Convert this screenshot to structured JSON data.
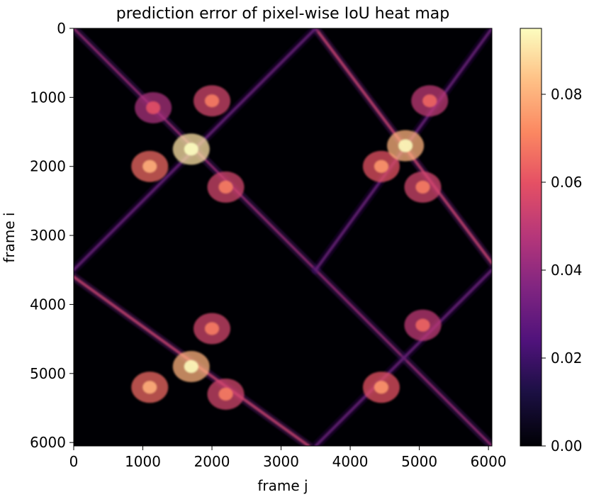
{
  "chart_data": {
    "type": "heatmap",
    "title": "prediction error of pixel-wise IoU heat map",
    "xlabel": "frame j",
    "ylabel": "frame i",
    "xlim": [
      0,
      6050
    ],
    "ylim": [
      6050,
      0
    ],
    "xticks": [
      0,
      1000,
      2000,
      3000,
      4000,
      5000,
      6000
    ],
    "yticks": [
      0,
      1000,
      2000,
      3000,
      4000,
      5000,
      6000
    ],
    "xtick_labels": [
      "0",
      "1000",
      "2000",
      "3000",
      "4000",
      "5000",
      "6000"
    ],
    "ytick_labels": [
      "0",
      "1000",
      "2000",
      "3000",
      "4000",
      "5000",
      "6000"
    ],
    "colormap": "magma",
    "background_color": "#000004",
    "colorbar": {
      "range": [
        0.0,
        0.095
      ],
      "ticks": [
        0.0,
        0.02,
        0.04,
        0.06,
        0.08
      ],
      "tick_labels": [
        "0.00",
        "0.02",
        "0.04",
        "0.06",
        "0.08"
      ]
    },
    "features": [
      {
        "kind": "diagonal",
        "from": [
          0,
          0
        ],
        "to": [
          3500,
          3500
        ],
        "value": 0.05
      },
      {
        "kind": "diagonal",
        "from": [
          3500,
          3500
        ],
        "to": [
          6050,
          6050
        ],
        "value": 0.05
      },
      {
        "kind": "anti-diagonal",
        "from": [
          3500,
          0
        ],
        "to": [
          6050,
          3400
        ],
        "value": 0.06
      },
      {
        "kind": "anti-diagonal",
        "from": [
          0,
          3600
        ],
        "to": [
          3400,
          6050
        ],
        "value": 0.06
      },
      {
        "kind": "anti-diagonal",
        "from": [
          3500,
          3500
        ],
        "to": [
          6050,
          0
        ],
        "value": 0.035
      },
      {
        "kind": "anti-diagonal",
        "from": [
          0,
          3500
        ],
        "to": [
          3500,
          0
        ],
        "value": 0.035
      },
      {
        "kind": "anti-diagonal",
        "from": [
          3500,
          6050
        ],
        "to": [
          6050,
          3500
        ],
        "value": 0.035
      },
      {
        "kind": "blob",
        "center": [
          1150,
          1150
        ],
        "value": 0.045
      },
      {
        "kind": "blob",
        "center": [
          2000,
          1050
        ],
        "value": 0.055
      },
      {
        "kind": "blob",
        "center": [
          1100,
          2000
        ],
        "value": 0.065
      },
      {
        "kind": "blob",
        "center": [
          2200,
          2300
        ],
        "value": 0.055
      },
      {
        "kind": "blob",
        "center": [
          5150,
          1050
        ],
        "value": 0.05
      },
      {
        "kind": "blob",
        "center": [
          4450,
          2000
        ],
        "value": 0.06
      },
      {
        "kind": "blob",
        "center": [
          5050,
          2300
        ],
        "value": 0.055
      },
      {
        "kind": "blob",
        "center": [
          2000,
          4350
        ],
        "value": 0.055
      },
      {
        "kind": "blob",
        "center": [
          1100,
          5200
        ],
        "value": 0.065
      },
      {
        "kind": "blob",
        "center": [
          2200,
          5300
        ],
        "value": 0.055
      },
      {
        "kind": "blob",
        "center": [
          5050,
          4300
        ],
        "value": 0.05
      },
      {
        "kind": "blob",
        "center": [
          4450,
          5200
        ],
        "value": 0.06
      },
      {
        "kind": "blob",
        "center": [
          1700,
          1750
        ],
        "value": 0.09
      },
      {
        "kind": "blob",
        "center": [
          1700,
          4900
        ],
        "value": 0.08
      },
      {
        "kind": "blob",
        "center": [
          4800,
          1700
        ],
        "value": 0.08
      }
    ]
  }
}
